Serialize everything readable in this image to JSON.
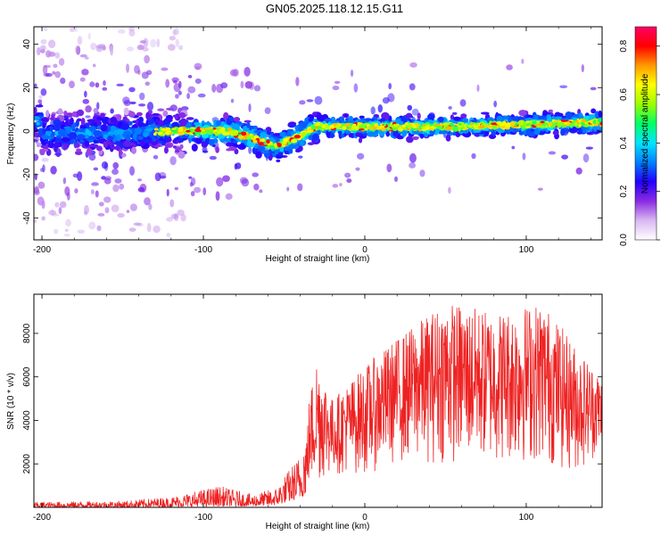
{
  "title": "GN05.2025.118.12.15.G11",
  "chart_data": [
    {
      "type": "heatmap",
      "xlabel": "Height of straight line (km)",
      "ylabel": "Frequency (Hz)",
      "xlim": [
        -205,
        147
      ],
      "ylim": [
        -50,
        48
      ],
      "xticks": [
        -200,
        -100,
        0,
        100
      ],
      "yticks": [
        -40,
        -20,
        0,
        20,
        40
      ],
      "colorbar": {
        "label": "Normalized spectral amplitude",
        "range": [
          0.0,
          0.88
        ],
        "ticks": [
          "0.0",
          "0.2",
          "0.4",
          "0.6",
          "0.8"
        ],
        "colormap": [
          "#ffffff",
          "#d9b8f2",
          "#8a2be2",
          "#2200ff",
          "#0080ff",
          "#00e5ff",
          "#00ff66",
          "#9bff00",
          "#ffff00",
          "#ff9900",
          "#ff0000",
          "#ff0066"
        ]
      },
      "ridge": [
        {
          "x": -200,
          "y": -1
        },
        {
          "x": -150,
          "y": -1
        },
        {
          "x": -120,
          "y": 0
        },
        {
          "x": -85,
          "y": 0
        },
        {
          "x": -70,
          "y": -3
        },
        {
          "x": -55,
          "y": -7
        },
        {
          "x": -40,
          "y": -2
        },
        {
          "x": -30,
          "y": 2
        },
        {
          "x": 0,
          "y": 2
        },
        {
          "x": 50,
          "y": 2
        },
        {
          "x": 100,
          "y": 3
        },
        {
          "x": 147,
          "y": 4
        }
      ],
      "grid": false
    },
    {
      "type": "line",
      "xlabel": "Height of straight line (km)",
      "ylabel": "SNR (10 * v/v)",
      "xlim": [
        -205,
        147
      ],
      "ylim": [
        0,
        9800
      ],
      "xticks": [
        -200,
        -100,
        0,
        100
      ],
      "yticks": [
        2000,
        4000,
        6000,
        8000
      ],
      "color": "#ee2222",
      "envelope": [
        {
          "x": -205,
          "low": 0,
          "high": 250
        },
        {
          "x": -150,
          "low": 0,
          "high": 300
        },
        {
          "x": -120,
          "low": 20,
          "high": 500
        },
        {
          "x": -90,
          "low": 50,
          "high": 1000
        },
        {
          "x": -70,
          "low": 50,
          "high": 600
        },
        {
          "x": -55,
          "low": 100,
          "high": 900
        },
        {
          "x": -40,
          "low": 400,
          "high": 2500
        },
        {
          "x": -30,
          "low": 1000,
          "high": 7000
        },
        {
          "x": -20,
          "low": 1500,
          "high": 5000
        },
        {
          "x": 0,
          "low": 1500,
          "high": 6500
        },
        {
          "x": 20,
          "low": 2000,
          "high": 7800
        },
        {
          "x": 50,
          "low": 2000,
          "high": 9500
        },
        {
          "x": 80,
          "low": 2000,
          "high": 9000
        },
        {
          "x": 110,
          "low": 2000,
          "high": 9500
        },
        {
          "x": 130,
          "low": 1500,
          "high": 7500
        },
        {
          "x": 147,
          "low": 2500,
          "high": 6000
        }
      ],
      "grid": false
    }
  ]
}
